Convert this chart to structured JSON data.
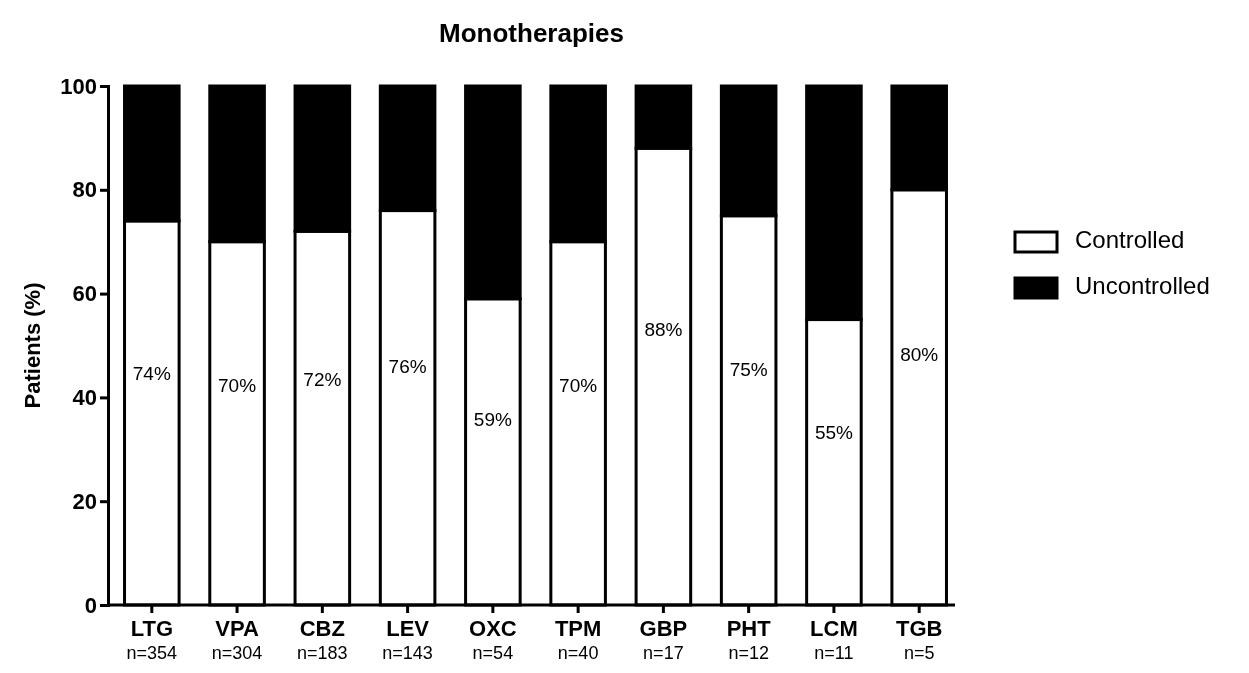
{
  "chart_data": {
    "type": "bar",
    "title": "Monotherapies",
    "ylabel": "Patients (%)",
    "stacked": true,
    "categories": [
      "LTG",
      "VPA",
      "CBZ",
      "LEV",
      "OXC",
      "TPM",
      "GBP",
      "PHT",
      "LCM",
      "TGB"
    ],
    "series": [
      {
        "name": "Controlled",
        "color": "#ffffff",
        "values": [
          74,
          70,
          72,
          76,
          59,
          70,
          88,
          75,
          55,
          80
        ],
        "value_labels": [
          "74%",
          "70%",
          "72%",
          "76%",
          "59%",
          "70%",
          "88%",
          "75%",
          "55%",
          "80%"
        ]
      },
      {
        "name": "Uncontrolled",
        "color": "#000000",
        "values": [
          26,
          30,
          28,
          24,
          41,
          30,
          12,
          25,
          45,
          20
        ]
      }
    ],
    "annotations": [
      "n=354",
      "n=304",
      "n=183",
      "n=143",
      "n=54",
      "n=40",
      "n=17",
      "n=12",
      "n=11",
      "n=5"
    ],
    "ylim": [
      0,
      100
    ],
    "yticks": [
      0,
      20,
      40,
      60,
      80,
      100
    ],
    "grid": false,
    "legend": "right"
  }
}
